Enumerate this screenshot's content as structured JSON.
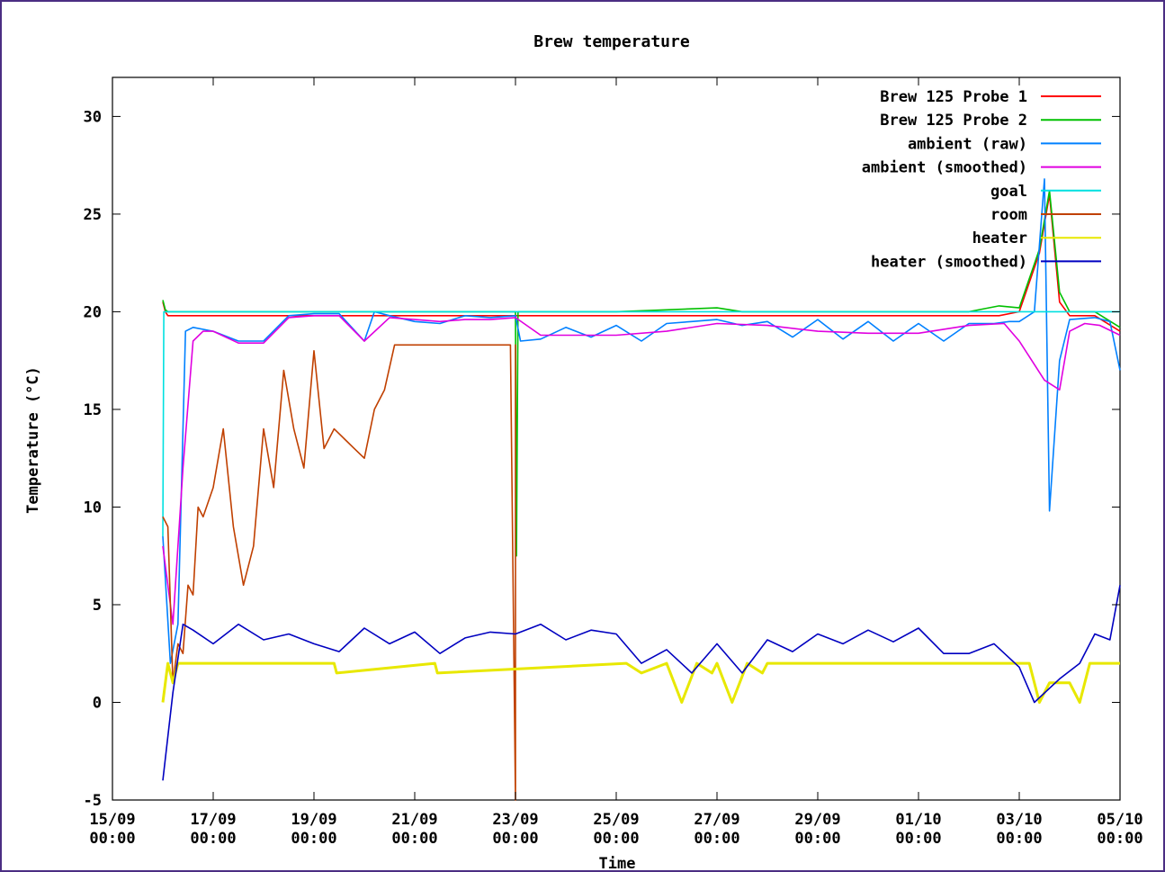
{
  "chart_data": {
    "type": "line",
    "title": "Brew temperature",
    "xlabel": "Time",
    "ylabel": "Temperature (°C)",
    "x_start": "15/09 00:00",
    "x_end": "05/10 00:00",
    "ylim": [
      -5,
      32
    ],
    "grid": false,
    "legend_position": "top-right",
    "y_ticks": [
      -5,
      0,
      5,
      10,
      15,
      20,
      25,
      30
    ],
    "x_ticks": [
      {
        "date": "15/09",
        "time": "00:00"
      },
      {
        "date": "17/09",
        "time": "00:00"
      },
      {
        "date": "19/09",
        "time": "00:00"
      },
      {
        "date": "21/09",
        "time": "00:00"
      },
      {
        "date": "23/09",
        "time": "00:00"
      },
      {
        "date": "25/09",
        "time": "00:00"
      },
      {
        "date": "27/09",
        "time": "00:00"
      },
      {
        "date": "29/09",
        "time": "00:00"
      },
      {
        "date": "01/10",
        "time": "00:00"
      },
      {
        "date": "03/10",
        "time": "00:00"
      },
      {
        "date": "05/10",
        "time": "00:00"
      }
    ],
    "x_tick_days": [
      0,
      2,
      4,
      6,
      8,
      10,
      12,
      14,
      16,
      18,
      20
    ],
    "series": [
      {
        "name": "Brew 125 Probe 1",
        "color": "#ff0000",
        "x_days": [
          1.0,
          1.05,
          1.1,
          1.3,
          2.0,
          4.0,
          6.0,
          8.0,
          10.0,
          12.0,
          14.0,
          16.0,
          17.0,
          17.6,
          18.0,
          18.4,
          18.6,
          18.8,
          19.0,
          19.5,
          20.0
        ],
        "values": [
          20.5,
          20.0,
          19.8,
          19.8,
          19.8,
          19.8,
          19.8,
          19.8,
          19.8,
          19.8,
          19.8,
          19.8,
          19.8,
          19.8,
          20.0,
          23.0,
          26.0,
          20.5,
          19.8,
          19.8,
          19.0
        ]
      },
      {
        "name": "Brew 125 Probe 2",
        "color": "#00c000",
        "x_days": [
          1.0,
          1.05,
          1.1,
          2.0,
          4.0,
          6.0,
          7.95,
          8.0,
          8.02,
          8.05,
          8.1,
          10.0,
          12.0,
          12.5,
          14.0,
          16.0,
          17.0,
          17.6,
          18.0,
          18.4,
          18.6,
          18.8,
          19.0,
          19.5,
          20.0
        ],
        "values": [
          20.6,
          20.1,
          20.0,
          20.0,
          20.0,
          20.0,
          20.0,
          20.0,
          7.5,
          20.0,
          20.0,
          20.0,
          20.2,
          20.0,
          20.0,
          20.0,
          20.0,
          20.3,
          20.2,
          23.2,
          26.2,
          21.0,
          20.0,
          20.0,
          19.2
        ]
      },
      {
        "name": "ambient (raw)",
        "color": "#0080ff",
        "x_days": [
          1.0,
          1.15,
          1.3,
          1.45,
          1.6,
          2.0,
          2.5,
          3.0,
          3.5,
          4.0,
          4.5,
          5.0,
          5.2,
          5.5,
          6.0,
          6.5,
          7.0,
          7.5,
          8.0,
          8.1,
          8.5,
          9.0,
          9.5,
          10.0,
          10.5,
          11.0,
          11.5,
          12.0,
          12.5,
          13.0,
          13.5,
          14.0,
          14.5,
          15.0,
          15.5,
          16.0,
          16.5,
          17.0,
          17.5,
          17.8,
          18.0,
          18.3,
          18.5,
          18.6,
          18.8,
          19.0,
          19.5,
          19.8,
          20.0
        ],
        "values": [
          8.5,
          2.0,
          4.0,
          19.0,
          19.2,
          19.0,
          18.5,
          18.5,
          19.8,
          19.9,
          19.9,
          18.5,
          20.0,
          19.8,
          19.5,
          19.4,
          19.8,
          19.7,
          19.8,
          18.5,
          18.6,
          19.2,
          18.7,
          19.3,
          18.5,
          19.4,
          19.5,
          19.6,
          19.3,
          19.5,
          18.7,
          19.6,
          18.6,
          19.5,
          18.5,
          19.4,
          18.5,
          19.4,
          19.4,
          19.5,
          19.5,
          20.0,
          26.8,
          9.8,
          17.5,
          19.6,
          19.7,
          19.5,
          17.0
        ]
      },
      {
        "name": "ambient (smoothed)",
        "color": "#e000e0",
        "x_days": [
          1.0,
          1.2,
          1.4,
          1.6,
          1.8,
          2.0,
          2.5,
          3.0,
          3.5,
          4.0,
          4.5,
          5.0,
          5.5,
          6.0,
          6.5,
          7.0,
          7.5,
          8.0,
          8.5,
          9.0,
          10.0,
          11.0,
          12.0,
          13.0,
          14.0,
          15.0,
          16.0,
          17.0,
          17.7,
          18.0,
          18.5,
          18.8,
          19.0,
          19.3,
          19.6,
          20.0
        ],
        "values": [
          8.0,
          4.0,
          12.0,
          18.5,
          19.0,
          19.0,
          18.4,
          18.4,
          19.7,
          19.8,
          19.8,
          18.5,
          19.7,
          19.6,
          19.5,
          19.6,
          19.6,
          19.7,
          18.8,
          18.8,
          18.8,
          19.0,
          19.4,
          19.3,
          19.0,
          18.9,
          18.9,
          19.3,
          19.4,
          18.5,
          16.5,
          16.0,
          19.0,
          19.4,
          19.3,
          18.8
        ]
      },
      {
        "name": "goal",
        "color": "#00e0e0",
        "x_days": [
          1.0,
          1.02,
          1.05,
          20.0
        ],
        "values": [
          8.5,
          20.0,
          20.0,
          20.0
        ]
      },
      {
        "name": "room",
        "color": "#c04000",
        "x_days": [
          1.0,
          1.1,
          1.2,
          1.3,
          1.4,
          1.5,
          1.6,
          1.7,
          1.8,
          2.0,
          2.2,
          2.4,
          2.6,
          2.8,
          3.0,
          3.2,
          3.4,
          3.6,
          3.8,
          4.0,
          4.2,
          4.4,
          4.6,
          4.8,
          5.0,
          5.2,
          5.4,
          5.6,
          5.8,
          6.0,
          7.0,
          7.9,
          8.0,
          8.0,
          8.01
        ],
        "values": [
          9.5,
          9.0,
          1.0,
          3.0,
          2.5,
          6.0,
          5.5,
          10.0,
          9.5,
          11.0,
          14.0,
          9.0,
          6.0,
          8.0,
          14.0,
          11.0,
          17.0,
          14.0,
          12.0,
          18.0,
          13.0,
          14.0,
          13.5,
          13.0,
          12.5,
          15.0,
          16.0,
          18.3,
          18.3,
          18.3,
          18.3,
          18.3,
          -5.0,
          18.3,
          18.3
        ]
      },
      {
        "name": "heater",
        "color": "#e8e800",
        "x_days": [
          1.0,
          1.1,
          1.2,
          1.3,
          4.4,
          4.45,
          6.4,
          6.45,
          10.2,
          10.5,
          11.0,
          11.3,
          11.6,
          11.9,
          12.0,
          12.3,
          12.6,
          12.9,
          13.0,
          18.2,
          18.4,
          18.6,
          18.8,
          19.0,
          19.2,
          19.4,
          20.0
        ],
        "values": [
          0.0,
          2.0,
          1.0,
          2.0,
          2.0,
          1.5,
          2.0,
          1.5,
          2.0,
          1.5,
          2.0,
          0.0,
          2.0,
          1.5,
          2.0,
          0.0,
          2.0,
          1.5,
          2.0,
          2.0,
          0.0,
          1.0,
          1.0,
          1.0,
          0.0,
          2.0,
          2.0
        ]
      },
      {
        "name": "heater (smoothed)",
        "color": "#0000c0",
        "x_days": [
          1.0,
          1.2,
          1.4,
          1.6,
          2.0,
          2.5,
          3.0,
          3.5,
          4.0,
          4.5,
          5.0,
          5.5,
          6.0,
          6.5,
          7.0,
          7.5,
          8.0,
          8.5,
          9.0,
          9.5,
          10.0,
          10.5,
          11.0,
          11.5,
          12.0,
          12.5,
          13.0,
          13.5,
          14.0,
          14.5,
          15.0,
          15.5,
          16.0,
          16.5,
          17.0,
          17.5,
          18.0,
          18.3,
          18.8,
          19.2,
          19.5,
          19.8,
          20.0
        ],
        "values": [
          -4.0,
          0.5,
          4.0,
          3.7,
          3.0,
          4.0,
          3.2,
          3.5,
          3.0,
          2.6,
          3.8,
          3.0,
          3.6,
          2.5,
          3.3,
          3.6,
          3.5,
          4.0,
          3.2,
          3.7,
          3.5,
          2.0,
          2.7,
          1.5,
          3.0,
          1.5,
          3.2,
          2.6,
          3.5,
          3.0,
          3.7,
          3.1,
          3.8,
          2.5,
          2.5,
          3.0,
          1.8,
          0.0,
          1.2,
          2.0,
          3.5,
          3.2,
          6.0
        ]
      }
    ]
  }
}
